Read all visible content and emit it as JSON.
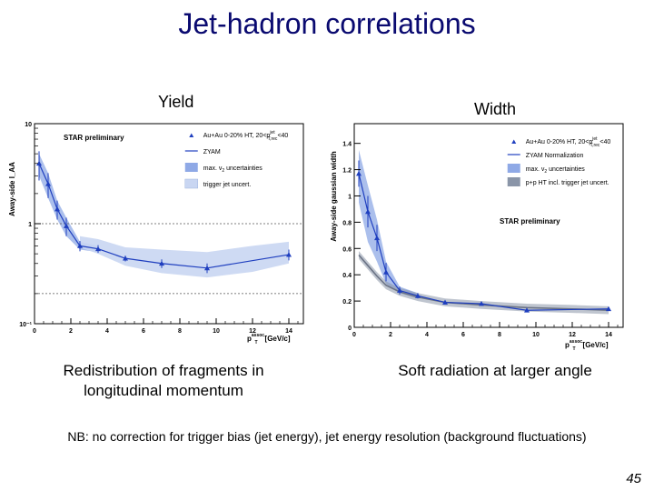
{
  "slide": {
    "title": "Jet-hadron correlations",
    "yield_label": "Yield",
    "width_label": "Width",
    "caption_left": "Redistribution of fragments in longitudinal momentum",
    "caption_right": "Soft radiation at larger angle",
    "note": "NB: no correction for trigger bias (jet energy), jet energy resolution (background fluctuations)",
    "slide_number": "45"
  },
  "colors": {
    "title": "#0a0a70",
    "data": "#1f3fbf",
    "band": "#8fa9e6",
    "trigger_band": "#c9d6f2",
    "pp_band": "#8a95a8"
  },
  "chart_data": [
    {
      "type": "line",
      "title": "",
      "ylabel": "Away-side I_AA",
      "xlabel_main": "p",
      "xlabel_sup": "assoc.",
      "xlabel_sub": "T",
      "xlabel_unit": "[GeV/c]",
      "yscale": "log",
      "xlim": [
        0,
        14.8
      ],
      "ylim": [
        0.1,
        10
      ],
      "x_ticks": [
        0,
        2,
        4,
        6,
        8,
        10,
        12,
        14
      ],
      "y_ticks": [
        0.1,
        1,
        10
      ],
      "y_tick_labels": [
        "10⁻¹",
        "1",
        "10"
      ],
      "reference_lines": [
        1,
        0.2
      ],
      "annotation": "STAR preliminary",
      "legend_position": "top-right",
      "legend": [
        {
          "label": "Au+Au 0-20% HT, 20<p",
          "sup": "jet",
          "sub": "T,rec",
          "suffix": "<40",
          "kind": "marker"
        },
        {
          "label": "ZYAM",
          "kind": "line"
        },
        {
          "label": "max. v",
          "sub": "2",
          "suffix": " uncertainties",
          "kind": "band"
        },
        {
          "label": "trigger jet uncert.",
          "kind": "hatch"
        }
      ],
      "series": [
        {
          "name": "Au+Au 0-20% HT",
          "x": [
            0.25,
            0.75,
            1.25,
            1.75,
            2.5,
            3.5,
            5.0,
            7.0,
            9.5,
            14.0
          ],
          "y": [
            4.0,
            2.5,
            1.4,
            0.95,
            0.6,
            0.56,
            0.45,
            0.4,
            0.36,
            0.49
          ],
          "err": [
            1.3,
            0.7,
            0.3,
            0.2,
            0.07,
            0.05,
            0.03,
            0.04,
            0.04,
            0.06
          ]
        }
      ],
      "bands": [
        {
          "name": "max. v2 uncertainties",
          "x": [
            0.25,
            0.75,
            1.25,
            1.75,
            2.5,
            3.5
          ],
          "low": [
            3.0,
            1.8,
            1.1,
            0.75,
            0.55,
            0.52
          ],
          "high": [
            5.0,
            3.2,
            1.7,
            1.15,
            0.66,
            0.6
          ]
        },
        {
          "name": "trigger jet uncert.",
          "x": [
            2.5,
            3.5,
            5.0,
            7.0,
            9.5,
            12.0,
            14.0
          ],
          "low": [
            0.58,
            0.5,
            0.38,
            0.32,
            0.29,
            0.33,
            0.4
          ],
          "high": [
            0.75,
            0.7,
            0.58,
            0.55,
            0.52,
            0.6,
            0.66
          ]
        }
      ]
    },
    {
      "type": "line",
      "title": "",
      "ylabel": "Away-side gaussian width",
      "xlabel_main": "p",
      "xlabel_sup": "assoc.",
      "xlabel_sub": "T",
      "xlabel_unit": "[GeV/c]",
      "xlim": [
        0,
        14.8
      ],
      "ylim": [
        0,
        1.55
      ],
      "x_ticks": [
        0,
        2,
        4,
        6,
        8,
        10,
        12,
        14
      ],
      "y_ticks": [
        0,
        0.2,
        0.4,
        0.6,
        0.8,
        1.0,
        1.2,
        1.4
      ],
      "y_tick_labels": [
        "0",
        "0.2",
        "0.4",
        "0.6",
        "0.8",
        "1",
        "1.2",
        "1.4"
      ],
      "annotation": "STAR preliminary",
      "legend_position": "top-right",
      "legend": [
        {
          "label": "Au+Au 0-20% HT, 20<p",
          "sup": "jet",
          "sub": "T,rec",
          "suffix": "<40",
          "kind": "marker"
        },
        {
          "label": "ZYAM Normalization",
          "kind": "line"
        },
        {
          "label": "max. v",
          "sub": "2",
          "suffix": " uncertainties",
          "kind": "band"
        },
        {
          "label": "p+p HT incl. trigger jet uncert.",
          "kind": "grayband"
        }
      ],
      "series": [
        {
          "name": "Au+Au 0-20% HT",
          "x": [
            0.25,
            0.75,
            1.25,
            1.75,
            2.5,
            3.5,
            5.0,
            7.0,
            9.5,
            14.0
          ],
          "y": [
            1.17,
            0.88,
            0.68,
            0.42,
            0.28,
            0.24,
            0.19,
            0.18,
            0.13,
            0.14
          ],
          "err": [
            0.1,
            0.12,
            0.1,
            0.07,
            0.03,
            0.02,
            0.01,
            0.01,
            0.01,
            0.01
          ]
        }
      ],
      "bands": [
        {
          "name": "max. v2 uncertainties",
          "x": [
            0.25,
            0.75,
            1.25,
            1.75,
            2.5,
            3.5
          ],
          "low": [
            0.95,
            0.65,
            0.5,
            0.33,
            0.26,
            0.22
          ],
          "high": [
            1.35,
            1.08,
            0.82,
            0.5,
            0.31,
            0.26
          ]
        }
      ],
      "reference_series": [
        {
          "name": "p+p HT incl. trigger jet uncert.",
          "x": [
            0.25,
            0.75,
            1.25,
            1.75,
            2.5,
            3.5,
            5.0,
            7.0,
            9.5,
            12.0,
            14.0
          ],
          "y": [
            0.55,
            0.47,
            0.39,
            0.32,
            0.27,
            0.23,
            0.19,
            0.17,
            0.15,
            0.14,
            0.13
          ]
        }
      ]
    }
  ]
}
